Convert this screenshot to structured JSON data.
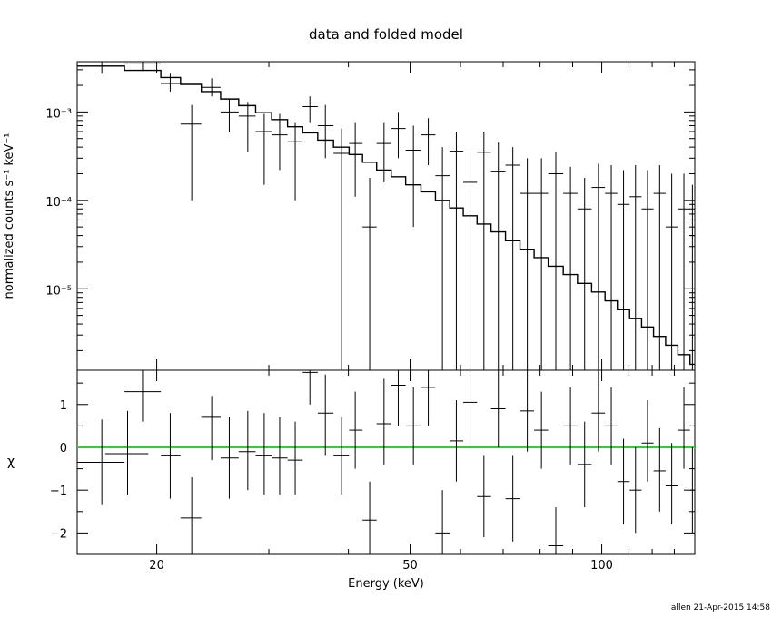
{
  "chart_data": [
    {
      "type": "scatter",
      "title": "data and folded model",
      "ylabel": "normalized counts s⁻¹ keV⁻¹",
      "xlabel": "",
      "xscale": "log",
      "yscale": "log",
      "xlim": [
        15,
        140
      ],
      "ylim": [
        1.2e-06,
        0.0037
      ],
      "y_tick_labels": [
        "10⁻³",
        "10⁻⁴",
        "10⁻⁵"
      ],
      "y_ticks": [
        0.001,
        0.0001,
        1e-05
      ],
      "series": [
        {
          "points": [
            {
              "x": 16.4,
              "y": 0.0033,
              "xlo": 15.0,
              "xhi": 17.8,
              "ylo": 0.0027,
              "yhi": 0.0038
            },
            {
              "x": 19.0,
              "y": 0.0035,
              "xlo": 17.8,
              "xhi": 20.3,
              "ylo": 0.0029,
              "yhi": 0.0038
            },
            {
              "x": 21.0,
              "y": 0.0021,
              "xlo": 20.3,
              "xhi": 21.8,
              "ylo": 0.0017,
              "yhi": 0.0027
            },
            {
              "x": 22.7,
              "y": 0.00073,
              "xlo": 21.8,
              "xhi": 23.5,
              "ylo": 0.0001,
              "yhi": 0.0012
            },
            {
              "x": 24.4,
              "y": 0.0019,
              "xlo": 23.5,
              "xhi": 25.2,
              "ylo": 0.0015,
              "yhi": 0.0024
            },
            {
              "x": 26.0,
              "y": 0.001,
              "xlo": 25.2,
              "xhi": 26.9,
              "ylo": 0.0006,
              "yhi": 0.0014
            },
            {
              "x": 27.8,
              "y": 0.0009,
              "xlo": 26.9,
              "xhi": 28.6,
              "ylo": 0.00035,
              "yhi": 0.0013
            },
            {
              "x": 29.5,
              "y": 0.0006,
              "xlo": 28.6,
              "xhi": 30.3,
              "ylo": 0.00015,
              "yhi": 0.00095
            },
            {
              "x": 31.2,
              "y": 0.00055,
              "xlo": 30.3,
              "xhi": 32.1,
              "ylo": 0.00022,
              "yhi": 0.00095
            },
            {
              "x": 33.0,
              "y": 0.00046,
              "xlo": 32.1,
              "xhi": 33.9,
              "ylo": 0.0001,
              "yhi": 0.00075
            },
            {
              "x": 34.8,
              "y": 0.00115,
              "xlo": 33.9,
              "xhi": 35.8,
              "ylo": 0.00075,
              "yhi": 0.0015
            },
            {
              "x": 36.8,
              "y": 0.0007,
              "xlo": 35.8,
              "xhi": 37.9,
              "ylo": 0.0003,
              "yhi": 0.0012
            },
            {
              "x": 39.0,
              "y": 0.00034,
              "xlo": 37.9,
              "xhi": 40.1,
              "ylo": 1.2e-06,
              "yhi": 0.00065
            },
            {
              "x": 41.0,
              "y": 0.00044,
              "xlo": 40.1,
              "xhi": 42.1,
              "ylo": 0.00011,
              "yhi": 0.00075
            },
            {
              "x": 43.2,
              "y": 5e-05,
              "xlo": 42.1,
              "xhi": 44.3,
              "ylo": 1.2e-06,
              "yhi": 0.00018
            },
            {
              "x": 45.5,
              "y": 0.00044,
              "xlo": 44.3,
              "xhi": 46.7,
              "ylo": 0.00016,
              "yhi": 0.00075
            },
            {
              "x": 47.9,
              "y": 0.00065,
              "xlo": 46.7,
              "xhi": 49.2,
              "ylo": 0.0003,
              "yhi": 0.001
            },
            {
              "x": 50.6,
              "y": 0.00037,
              "xlo": 49.2,
              "xhi": 52.0,
              "ylo": 5e-05,
              "yhi": 0.0007
            },
            {
              "x": 53.4,
              "y": 0.00055,
              "xlo": 52.0,
              "xhi": 54.8,
              "ylo": 0.00025,
              "yhi": 0.00085
            },
            {
              "x": 56.2,
              "y": 0.00019,
              "xlo": 54.8,
              "xhi": 57.7,
              "ylo": 1.2e-06,
              "yhi": 0.0004
            },
            {
              "x": 59.1,
              "y": 0.00036,
              "xlo": 57.7,
              "xhi": 60.6,
              "ylo": 1.2e-06,
              "yhi": 0.0006
            },
            {
              "x": 62.1,
              "y": 0.00016,
              "xlo": 60.6,
              "xhi": 63.7,
              "ylo": 1.2e-06,
              "yhi": 0.00035
            },
            {
              "x": 65.3,
              "y": 0.00035,
              "xlo": 63.7,
              "xhi": 67.0,
              "ylo": 1.2e-06,
              "yhi": 0.0006
            },
            {
              "x": 68.8,
              "y": 0.00021,
              "xlo": 67.0,
              "xhi": 70.6,
              "ylo": 1.2e-06,
              "yhi": 0.00045
            },
            {
              "x": 72.5,
              "y": 0.00025,
              "xlo": 70.6,
              "xhi": 74.4,
              "ylo": 1.2e-06,
              "yhi": 0.0004
            },
            {
              "x": 76.4,
              "y": 0.00012,
              "xlo": 74.4,
              "xhi": 78.3,
              "ylo": 1.2e-06,
              "yhi": 0.0003
            },
            {
              "x": 80.4,
              "y": 0.00012,
              "xlo": 78.3,
              "xhi": 82.4,
              "ylo": 1.2e-06,
              "yhi": 0.0003
            },
            {
              "x": 84.7,
              "y": 0.0002,
              "xlo": 82.4,
              "xhi": 87.0,
              "ylo": 1.2e-06,
              "yhi": 0.00035
            },
            {
              "x": 89.3,
              "y": 0.00012,
              "xlo": 87.0,
              "xhi": 91.6,
              "ylo": 1.2e-06,
              "yhi": 0.00024
            },
            {
              "x": 94.0,
              "y": 8e-05,
              "xlo": 91.6,
              "xhi": 96.4,
              "ylo": 1.2e-06,
              "yhi": 0.00018
            },
            {
              "x": 98.8,
              "y": 0.00014,
              "xlo": 96.4,
              "xhi": 101.2,
              "ylo": 1.2e-06,
              "yhi": 0.00026
            },
            {
              "x": 103.5,
              "y": 0.00012,
              "xlo": 101.2,
              "xhi": 105.8,
              "ylo": 1.2e-06,
              "yhi": 0.00025
            },
            {
              "x": 108.2,
              "y": 9e-05,
              "xlo": 105.8,
              "xhi": 110.6,
              "ylo": 1.2e-06,
              "yhi": 0.00022
            },
            {
              "x": 113.0,
              "y": 0.00011,
              "xlo": 110.6,
              "xhi": 115.5,
              "ylo": 1.2e-06,
              "yhi": 0.00025
            },
            {
              "x": 118.0,
              "y": 8e-05,
              "xlo": 115.5,
              "xhi": 120.6,
              "ylo": 1.2e-06,
              "yhi": 0.00022
            },
            {
              "x": 123.3,
              "y": 0.00012,
              "xlo": 120.6,
              "xhi": 126.0,
              "ylo": 1.2e-06,
              "yhi": 0.00025
            },
            {
              "x": 128.8,
              "y": 5e-05,
              "xlo": 126.0,
              "xhi": 131.7,
              "ylo": 1.2e-06,
              "yhi": 0.0002
            },
            {
              "x": 134.6,
              "y": 8e-05,
              "xlo": 131.7,
              "xhi": 137.6,
              "ylo": 1.2e-06,
              "yhi": 0.0002
            },
            {
              "x": 138.8,
              "y": 4e-05,
              "xlo": 137.6,
              "xhi": 140.0,
              "ylo": 1.2e-06,
              "yhi": 0.00015
            }
          ]
        },
        {
          "type": "step",
          "model_steps": [
            [
              15.0,
              0.0033
            ],
            [
              17.8,
              0.00295
            ],
            [
              20.3,
              0.00245
            ],
            [
              21.8,
              0.00205
            ],
            [
              23.5,
              0.0017
            ],
            [
              25.2,
              0.0014
            ],
            [
              26.9,
              0.00118
            ],
            [
              28.6,
              0.00098
            ],
            [
              30.3,
              0.00082
            ],
            [
              32.1,
              0.00068
            ],
            [
              33.9,
              0.00058
            ],
            [
              35.8,
              0.00048
            ],
            [
              37.9,
              0.0004
            ],
            [
              40.1,
              0.00033
            ],
            [
              42.1,
              0.00027
            ],
            [
              44.3,
              0.00022
            ],
            [
              46.7,
              0.000185
            ],
            [
              49.2,
              0.00015
            ],
            [
              52.0,
              0.000125
            ],
            [
              54.8,
              0.0001
            ],
            [
              57.7,
              8.2e-05
            ],
            [
              60.6,
              6.7e-05
            ],
            [
              63.7,
              5.4e-05
            ],
            [
              67.0,
              4.4e-05
            ],
            [
              70.6,
              3.5e-05
            ],
            [
              74.4,
              2.8e-05
            ],
            [
              78.3,
              2.25e-05
            ],
            [
              82.4,
              1.8e-05
            ],
            [
              87.0,
              1.45e-05
            ],
            [
              91.6,
              1.15e-05
            ],
            [
              96.4,
              9.2e-06
            ],
            [
              101.2,
              7.3e-06
            ],
            [
              105.8,
              5.8e-06
            ],
            [
              110.6,
              4.6e-06
            ],
            [
              115.5,
              3.7e-06
            ],
            [
              120.6,
              2.9e-06
            ],
            [
              126.0,
              2.3e-06
            ],
            [
              131.7,
              1.8e-06
            ],
            [
              137.6,
              1.4e-06
            ],
            [
              140.0,
              1.4e-06
            ]
          ]
        }
      ]
    },
    {
      "type": "scatter",
      "xlabel": "Energy (keV)",
      "ylabel": "χ",
      "xscale": "log",
      "xlim": [
        15,
        140
      ],
      "ylim": [
        -2.5,
        1.8
      ],
      "x_ticks": [
        20,
        50,
        100
      ],
      "x_tick_labels": [
        "20",
        "50",
        "100"
      ],
      "y_ticks": [
        1,
        0,
        -1,
        -2
      ],
      "y_tick_labels": [
        "1",
        "0",
        "−1",
        "−2"
      ],
      "reference_line": {
        "y": 0,
        "color": "#33cc33"
      },
      "series": [
        {
          "points": [
            {
              "x": 16.4,
              "y": -0.35,
              "xlo": 15.0,
              "xhi": 17.8,
              "ylo": -1.35,
              "yhi": 0.65
            },
            {
              "x": 19.0,
              "y": 1.3,
              "xlo": 17.8,
              "xhi": 20.3,
              "ylo": 0.6,
              "yhi": 1.8
            },
            {
              "x": 18.0,
              "y": -0.15,
              "xlo": 16.6,
              "xhi": 19.4,
              "ylo": -1.1,
              "yhi": 0.85
            },
            {
              "x": 21.0,
              "y": -0.2,
              "xlo": 20.3,
              "xhi": 21.8,
              "ylo": -1.2,
              "yhi": 0.8
            },
            {
              "x": 22.7,
              "y": -1.65,
              "xlo": 21.8,
              "xhi": 23.5,
              "ylo": -2.5,
              "yhi": -0.7
            },
            {
              "x": 24.4,
              "y": 0.7,
              "xlo": 23.5,
              "xhi": 25.2,
              "ylo": -0.3,
              "yhi": 1.2
            },
            {
              "x": 26.0,
              "y": -0.25,
              "xlo": 25.2,
              "xhi": 26.9,
              "ylo": -1.2,
              "yhi": 0.7
            },
            {
              "x": 27.8,
              "y": -0.1,
              "xlo": 26.9,
              "xhi": 28.6,
              "ylo": -1.0,
              "yhi": 0.85
            },
            {
              "x": 29.5,
              "y": -0.2,
              "xlo": 28.6,
              "xhi": 30.3,
              "ylo": -1.1,
              "yhi": 0.8
            },
            {
              "x": 31.2,
              "y": -0.25,
              "xlo": 30.3,
              "xhi": 32.1,
              "ylo": -1.1,
              "yhi": 0.7
            },
            {
              "x": 33.0,
              "y": -0.3,
              "xlo": 32.1,
              "xhi": 33.9,
              "ylo": -1.1,
              "yhi": 0.6
            },
            {
              "x": 34.8,
              "y": 1.75,
              "xlo": 33.9,
              "xhi": 35.8,
              "ylo": 1.0,
              "yhi": 1.8
            },
            {
              "x": 36.8,
              "y": 0.8,
              "xlo": 35.8,
              "xhi": 37.9,
              "ylo": -0.2,
              "yhi": 1.7
            },
            {
              "x": 39.0,
              "y": -0.2,
              "xlo": 37.9,
              "xhi": 40.1,
              "ylo": -1.1,
              "yhi": 0.7
            },
            {
              "x": 41.0,
              "y": 0.4,
              "xlo": 40.1,
              "xhi": 42.1,
              "ylo": -0.5,
              "yhi": 1.3
            },
            {
              "x": 43.2,
              "y": -1.7,
              "xlo": 42.1,
              "xhi": 44.3,
              "ylo": -2.5,
              "yhi": -0.8
            },
            {
              "x": 45.5,
              "y": 0.55,
              "xlo": 44.3,
              "xhi": 46.7,
              "ylo": -0.4,
              "yhi": 1.6
            },
            {
              "x": 47.9,
              "y": 1.45,
              "xlo": 46.7,
              "xhi": 49.2,
              "ylo": 0.5,
              "yhi": 1.8
            },
            {
              "x": 50.6,
              "y": 0.5,
              "xlo": 49.2,
              "xhi": 52.0,
              "ylo": -0.4,
              "yhi": 1.4
            },
            {
              "x": 53.4,
              "y": 1.4,
              "xlo": 52.0,
              "xhi": 54.8,
              "ylo": 0.5,
              "yhi": 1.8
            },
            {
              "x": 56.2,
              "y": -2.0,
              "xlo": 54.8,
              "xhi": 57.7,
              "ylo": -2.5,
              "yhi": -1.0
            },
            {
              "x": 59.1,
              "y": 0.15,
              "xlo": 57.7,
              "xhi": 60.6,
              "ylo": -0.8,
              "yhi": 1.1
            },
            {
              "x": 62.1,
              "y": 1.05,
              "xlo": 60.6,
              "xhi": 63.7,
              "ylo": 0.1,
              "yhi": 1.8
            },
            {
              "x": 65.3,
              "y": -1.15,
              "xlo": 63.7,
              "xhi": 67.0,
              "ylo": -2.1,
              "yhi": -0.2
            },
            {
              "x": 68.8,
              "y": 0.9,
              "xlo": 67.0,
              "xhi": 70.6,
              "ylo": 0.0,
              "yhi": 1.8
            },
            {
              "x": 72.5,
              "y": -1.2,
              "xlo": 70.6,
              "xhi": 74.4,
              "ylo": -2.2,
              "yhi": -0.2
            },
            {
              "x": 76.4,
              "y": 0.85,
              "xlo": 74.4,
              "xhi": 78.3,
              "ylo": -0.1,
              "yhi": 1.8
            },
            {
              "x": 80.4,
              "y": 0.4,
              "xlo": 78.3,
              "xhi": 82.4,
              "ylo": -0.5,
              "yhi": 1.3
            },
            {
              "x": 84.7,
              "y": -2.3,
              "xlo": 82.4,
              "xhi": 87.0,
              "ylo": -2.5,
              "yhi": -1.4
            },
            {
              "x": 89.3,
              "y": 0.5,
              "xlo": 87.0,
              "xhi": 91.6,
              "ylo": -0.4,
              "yhi": 1.4
            },
            {
              "x": 94.0,
              "y": -0.4,
              "xlo": 91.6,
              "xhi": 96.4,
              "ylo": -1.4,
              "yhi": 0.6
            },
            {
              "x": 98.8,
              "y": 0.8,
              "xlo": 96.4,
              "xhi": 101.2,
              "ylo": -0.1,
              "yhi": 1.8
            },
            {
              "x": 103.5,
              "y": 0.5,
              "xlo": 101.2,
              "xhi": 105.8,
              "ylo": -0.4,
              "yhi": 1.4
            },
            {
              "x": 108.2,
              "y": -0.8,
              "xlo": 105.8,
              "xhi": 110.6,
              "ylo": -1.8,
              "yhi": 0.2
            },
            {
              "x": 113.0,
              "y": -1.0,
              "xlo": 110.6,
              "xhi": 115.5,
              "ylo": -2.0,
              "yhi": 0.0
            },
            {
              "x": 118.0,
              "y": 0.1,
              "xlo": 115.5,
              "xhi": 120.6,
              "ylo": -0.8,
              "yhi": 1.1
            },
            {
              "x": 123.3,
              "y": -0.55,
              "xlo": 120.6,
              "xhi": 126.0,
              "ylo": -1.5,
              "yhi": 0.45
            },
            {
              "x": 128.8,
              "y": -0.9,
              "xlo": 126.0,
              "xhi": 131.7,
              "ylo": -1.8,
              "yhi": 0.1
            },
            {
              "x": 134.6,
              "y": 0.4,
              "xlo": 131.7,
              "xhi": 137.6,
              "ylo": -0.5,
              "yhi": 1.4
            },
            {
              "x": 138.8,
              "y": -1.0,
              "xlo": 137.6,
              "xhi": 140.0,
              "ylo": -2.0,
              "yhi": 0.0
            }
          ]
        }
      ]
    }
  ],
  "footer": {
    "stamp": "allen 21-Apr-2015 14:58"
  }
}
